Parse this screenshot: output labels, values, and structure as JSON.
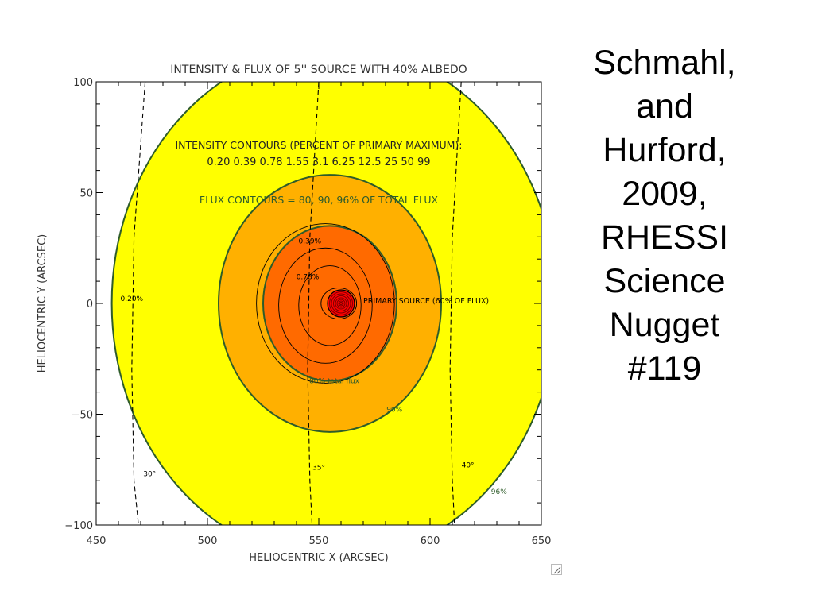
{
  "slide_title_lines": [
    "Schmahl,",
    "and",
    "Hurford,",
    "2009,",
    "RHESSI",
    "Science",
    "Nugget",
    "#119"
  ],
  "colors": {
    "yellow_region": "#ffff00",
    "orange_region": "#ffb000",
    "dark_orange_region": "#ff6a00",
    "flux_contour": "#2e5c2a",
    "primary_source": "#ff0000",
    "intensity_contour": "#000000"
  },
  "chart_data": {
    "type": "contour",
    "title": "INTENSITY & FLUX OF 5'' SOURCE WITH 40% ALBEDO",
    "xlabel": "HELIOCENTRIC X (ARCSEC)",
    "ylabel": "HELIOCENTRIC Y (ARCSEC)",
    "xlim": [
      450,
      650
    ],
    "ylim": [
      -100,
      100
    ],
    "xticks": [
      450,
      500,
      550,
      600,
      650
    ],
    "yticks": [
      100,
      50,
      0,
      -50,
      -100
    ],
    "xtick_labels": [
      "450",
      "500",
      "550",
      "600",
      "650"
    ],
    "ytick_labels": [
      "100",
      "50",
      "0",
      "−50",
      "−100"
    ],
    "annotations": {
      "intensity_header": "INTENSITY CONTOURS (PERCENT OF PRIMARY MAXIMUM):",
      "intensity_levels": "0.20 0.39 0.78 1.55 3.1 6.25 12.5 25 50 99",
      "flux_header": "FLUX CONTOURS = 80, 90, 96% OF TOTAL FLUX",
      "primary_source": "PRIMARY SOURCE (60% OF FLUX)"
    },
    "primary_source": {
      "x": 560,
      "y": 0
    },
    "flux_contours": [
      {
        "label": "80% total flux",
        "percent": 80,
        "cx": 555,
        "cy": 0,
        "rx": 30,
        "ry": 35,
        "label_pos": {
          "x": 557,
          "y": -36
        }
      },
      {
        "label": "90%",
        "percent": 90,
        "cx": 555,
        "cy": 0,
        "rx": 50,
        "ry": 58,
        "label_pos": {
          "x": 584,
          "y": -49
        }
      },
      {
        "label": "96%",
        "percent": 96,
        "cx": 557,
        "cy": 0,
        "rx": 100,
        "ry": 116,
        "label_pos": {
          "x": 631,
          "y": -86
        }
      }
    ],
    "intensity_contours": [
      {
        "label": "0.20%",
        "cx": 553,
        "cy": 0,
        "rx": 31,
        "ry": 36,
        "label_pos": {
          "x": 466,
          "y": 1
        }
      },
      {
        "label": "0.39%",
        "cx": 553,
        "cy": -1,
        "rx": 21,
        "ry": 26,
        "label_pos": {
          "x": 546,
          "y": 27
        }
      },
      {
        "label": "0.78%",
        "cx": 555,
        "cy": -1,
        "rx": 14,
        "ry": 18,
        "label_pos": {
          "x": 545,
          "y": 11
        }
      }
    ],
    "longitude_lines": [
      {
        "label": "30°",
        "points": [
          [
            472,
            100
          ],
          [
            467,
            30
          ],
          [
            466,
            -30
          ],
          [
            467,
            -80
          ],
          [
            469,
            -100
          ]
        ],
        "label_pos": {
          "x": 474,
          "y": -78
        }
      },
      {
        "label": "35°",
        "points": [
          [
            550,
            100
          ],
          [
            546,
            30
          ],
          [
            545,
            -30
          ],
          [
            546,
            -80
          ],
          [
            547,
            -100
          ]
        ],
        "label_pos": {
          "x": 550,
          "y": -75
        }
      },
      {
        "label": "40°",
        "points": [
          [
            614,
            100
          ],
          [
            610,
            30
          ],
          [
            609,
            -30
          ],
          [
            610,
            -80
          ],
          [
            611,
            -100
          ]
        ],
        "label_pos": {
          "x": 617,
          "y": -74
        }
      }
    ]
  }
}
